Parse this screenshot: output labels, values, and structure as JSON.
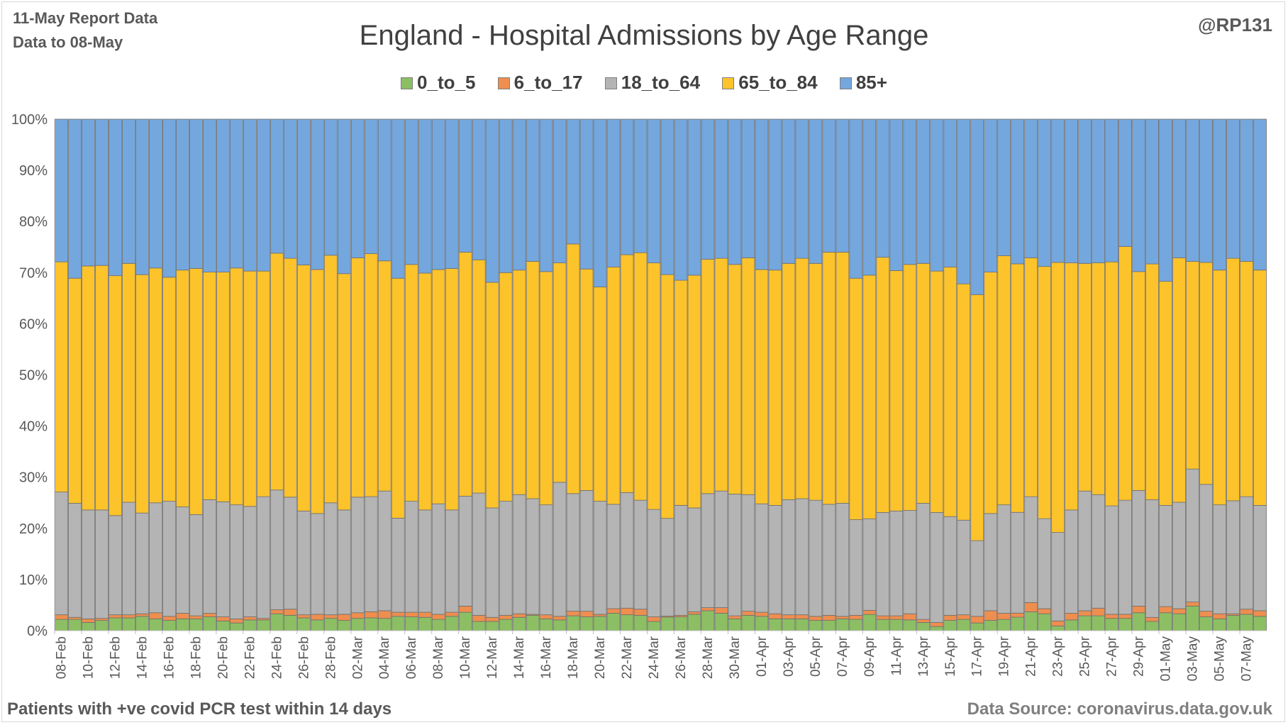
{
  "header": {
    "report": "11-May Report Data",
    "data_to": "Data to 08-May",
    "handle": "@RP131"
  },
  "footer": {
    "note": "Patients with  +ve covid PCR test within 14 days",
    "source": "Data Source: coronavirus.data.gov.uk"
  },
  "colors": {
    "0_to_5": "#8cbf63",
    "6_to_17": "#ee8e4f",
    "18_to_64": "#b4b4b4",
    "65_to_84": "#fdc32b",
    "85+": "#74a7dd"
  },
  "chart_data": {
    "type": "bar",
    "stacked": true,
    "percent": true,
    "title": "England - Hospital Admissions by Age Range",
    "xlabel": "",
    "ylabel": "",
    "ylim": [
      0,
      100
    ],
    "yticks": [
      "0%",
      "10%",
      "20%",
      "30%",
      "40%",
      "50%",
      "60%",
      "70%",
      "80%",
      "90%",
      "100%"
    ],
    "grid": false,
    "legend": "top-center",
    "categories": [
      "08-Feb",
      "09-Feb",
      "10-Feb",
      "11-Feb",
      "12-Feb",
      "13-Feb",
      "14-Feb",
      "15-Feb",
      "16-Feb",
      "17-Feb",
      "18-Feb",
      "19-Feb",
      "20-Feb",
      "21-Feb",
      "22-Feb",
      "23-Feb",
      "24-Feb",
      "25-Feb",
      "26-Feb",
      "27-Feb",
      "28-Feb",
      "01-Mar",
      "02-Mar",
      "03-Mar",
      "04-Mar",
      "05-Mar",
      "06-Mar",
      "07-Mar",
      "08-Mar",
      "09-Mar",
      "10-Mar",
      "11-Mar",
      "12-Mar",
      "13-Mar",
      "14-Mar",
      "15-Mar",
      "16-Mar",
      "17-Mar",
      "18-Mar",
      "19-Mar",
      "20-Mar",
      "21-Mar",
      "22-Mar",
      "23-Mar",
      "24-Mar",
      "25-Mar",
      "26-Mar",
      "27-Mar",
      "28-Mar",
      "29-Mar",
      "30-Mar",
      "31-Mar",
      "01-Apr",
      "02-Apr",
      "03-Apr",
      "04-Apr",
      "05-Apr",
      "06-Apr",
      "07-Apr",
      "08-Apr",
      "09-Apr",
      "10-Apr",
      "11-Apr",
      "12-Apr",
      "13-Apr",
      "14-Apr",
      "15-Apr",
      "16-Apr",
      "17-Apr",
      "18-Apr",
      "19-Apr",
      "20-Apr",
      "21-Apr",
      "22-Apr",
      "23-Apr",
      "24-Apr",
      "25-Apr",
      "26-Apr",
      "27-Apr",
      "28-Apr",
      "29-Apr",
      "30-Apr",
      "01-May",
      "02-May",
      "03-May",
      "04-May",
      "05-May",
      "06-May",
      "07-May",
      "08-May"
    ],
    "series": [
      {
        "name": "0_to_5",
        "values": [
          2.2,
          2.2,
          1.6,
          2.0,
          2.5,
          2.5,
          2.8,
          2.3,
          2.0,
          2.3,
          2.3,
          2.7,
          1.9,
          1.5,
          2.1,
          2.1,
          3.3,
          3.0,
          2.5,
          2.1,
          2.4,
          2.0,
          2.4,
          2.5,
          2.4,
          2.8,
          2.7,
          2.6,
          2.2,
          2.8,
          3.6,
          1.8,
          1.8,
          2.2,
          2.6,
          3.0,
          2.3,
          2.1,
          2.9,
          2.7,
          2.8,
          3.4,
          3.1,
          3.0,
          1.8,
          2.7,
          2.7,
          3.2,
          3.9,
          3.4,
          2.3,
          3.0,
          2.8,
          2.3,
          2.3,
          2.3,
          2.0,
          2.0,
          2.3,
          2.2,
          3.2,
          2.2,
          2.2,
          2.1,
          1.6,
          0.8,
          2.0,
          2.2,
          1.5,
          2.0,
          2.2,
          2.6,
          3.7,
          3.3,
          0.9,
          2.1,
          2.9,
          2.9,
          2.4,
          2.4,
          3.5,
          1.8,
          3.5,
          3.3,
          4.8,
          2.7,
          2.3,
          3.0,
          3.2,
          2.8
        ]
      },
      {
        "name": "6_to_17",
        "values": [
          0.9,
          0.4,
          0.7,
          0.4,
          0.6,
          0.6,
          0.5,
          1.2,
          0.8,
          1.1,
          0.6,
          0.7,
          0.8,
          0.8,
          0.6,
          0.3,
          0.8,
          1.2,
          0.6,
          1.1,
          0.7,
          1.2,
          1.1,
          1.2,
          1.5,
          0.8,
          0.9,
          1.0,
          1.0,
          0.8,
          1.2,
          1.2,
          0.8,
          0.8,
          0.7,
          0.2,
          0.8,
          0.7,
          0.9,
          1.1,
          0.4,
          0.9,
          1.3,
          1.2,
          0.9,
          0.2,
          0.3,
          0.5,
          0.6,
          1.1,
          0.6,
          0.8,
          0.8,
          1.0,
          0.8,
          0.8,
          0.8,
          1.0,
          0.5,
          0.8,
          0.8,
          0.7,
          0.7,
          1.2,
          0.6,
          0.8,
          1.0,
          0.9,
          1.3,
          1.9,
          1.2,
          0.8,
          1.8,
          1.0,
          1.0,
          1.3,
          1.0,
          1.5,
          0.8,
          0.8,
          1.3,
          0.8,
          1.2,
          1.0,
          0.8,
          1.1,
          1.0,
          0.3,
          1.0,
          1.1
        ]
      },
      {
        "name": "18_to_64",
        "values": [
          24.0,
          22.3,
          21.3,
          21.2,
          19.4,
          22.0,
          19.7,
          21.5,
          22.5,
          20.8,
          19.8,
          22.2,
          22.5,
          22.3,
          21.6,
          23.8,
          23.4,
          21.9,
          20.3,
          19.7,
          21.9,
          20.4,
          22.6,
          22.5,
          23.4,
          18.4,
          21.7,
          20.0,
          21.6,
          20.0,
          21.5,
          23.9,
          21.4,
          22.3,
          23.3,
          22.6,
          21.5,
          26.2,
          23.0,
          23.6,
          22.1,
          20.4,
          22.6,
          21.3,
          21.0,
          19.5,
          21.5,
          20.3,
          22.3,
          22.8,
          23.8,
          22.8,
          21.2,
          21.2,
          22.5,
          22.7,
          22.7,
          21.7,
          22.1,
          18.7,
          18.1,
          20.2,
          20.5,
          20.2,
          22.7,
          21.5,
          19.3,
          18.5,
          14.8,
          19.0,
          21.2,
          19.5,
          20.7,
          17.6,
          17.3,
          20.2,
          23.4,
          22.2,
          21.2,
          22.3,
          22.6,
          23.0,
          19.8,
          20.8,
          26.0,
          24.8,
          21.3,
          22.1,
          22.0,
          20.6
        ]
      },
      {
        "name": "65_to_84",
        "values": [
          45.0,
          44.0,
          47.7,
          47.8,
          46.9,
          46.7,
          46.6,
          45.9,
          43.8,
          46.3,
          48.1,
          44.5,
          44.9,
          46.3,
          46.0,
          44.1,
          46.3,
          46.7,
          48.1,
          47.7,
          48.4,
          46.2,
          46.8,
          47.5,
          45.0,
          46.9,
          46.3,
          46.3,
          45.8,
          47.2,
          47.7,
          45.6,
          44.1,
          44.7,
          43.9,
          46.4,
          45.6,
          42.9,
          48.8,
          43.3,
          41.9,
          46.4,
          46.5,
          48.4,
          48.2,
          48.6,
          44.0,
          45.5,
          45.8,
          45.5,
          44.9,
          46.3,
          45.8,
          46.0,
          46.2,
          47.0,
          46.3,
          49.3,
          49.1,
          47.2,
          48.1,
          49.9,
          47.0,
          48.1,
          46.9,
          47.2,
          48.8,
          46.2,
          48.1,
          47.2,
          48.7,
          48.1,
          46.7,
          49.3,
          52.8,
          48.3,
          44.5,
          45.3,
          47.7,
          49.6,
          42.8,
          46.1,
          43.8,
          47.8,
          40.6,
          43.4,
          45.9,
          47.4,
          46.0,
          46.0
        ]
      },
      {
        "name": "85+",
        "values": [
          27.9,
          31.1,
          28.7,
          28.6,
          30.6,
          28.2,
          30.4,
          29.1,
          30.9,
          29.5,
          29.2,
          29.9,
          29.9,
          29.1,
          29.7,
          29.7,
          26.2,
          27.2,
          28.5,
          29.4,
          26.6,
          30.2,
          27.1,
          26.3,
          27.7,
          31.1,
          28.4,
          30.1,
          29.4,
          29.2,
          26.0,
          27.5,
          31.9,
          30.0,
          29.5,
          27.8,
          29.8,
          28.1,
          24.4,
          29.3,
          32.8,
          28.9,
          26.5,
          26.1,
          28.1,
          31.0,
          31.5,
          30.5,
          27.4,
          27.2,
          28.4,
          27.1,
          29.4,
          29.5,
          28.2,
          27.2,
          28.2,
          26.0,
          26.0,
          31.1,
          30.8,
          27.0,
          29.6,
          28.4,
          28.2,
          29.7,
          28.9,
          32.2,
          34.3,
          29.9,
          26.7,
          28.0,
          27.1,
          28.8,
          28.0,
          28.1,
          28.2,
          28.1,
          27.9,
          24.9,
          29.8,
          28.3,
          31.7,
          27.1,
          27.8,
          28.0,
          29.5,
          27.2,
          27.8,
          29.5
        ]
      }
    ]
  }
}
